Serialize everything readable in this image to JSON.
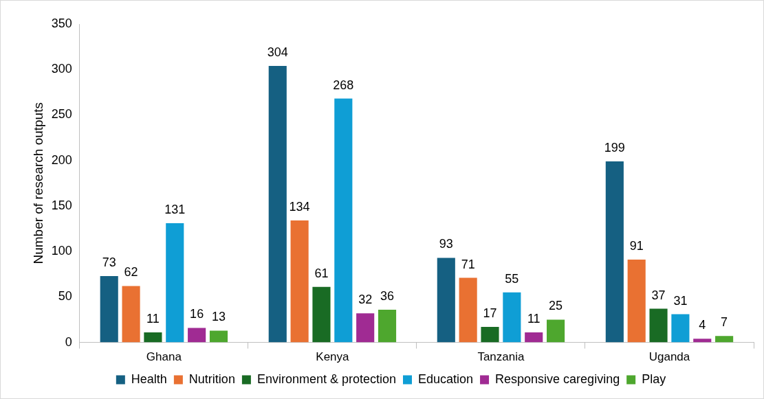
{
  "chart_data": {
    "type": "bar",
    "ylabel": "Number of research outputs",
    "categories": [
      "Ghana",
      "Kenya",
      "Tanzania",
      "Uganda"
    ],
    "series": [
      {
        "name": "Health",
        "color": "#156082",
        "values": [
          73,
          304,
          93,
          199
        ]
      },
      {
        "name": "Nutrition",
        "color": "#e97132",
        "values": [
          62,
          134,
          71,
          91
        ]
      },
      {
        "name": "Environment & protection",
        "color": "#196b24",
        "values": [
          11,
          61,
          17,
          37
        ]
      },
      {
        "name": "Education",
        "color": "#0f9ed5",
        "values": [
          131,
          268,
          55,
          31
        ]
      },
      {
        "name": "Responsive caregiving",
        "color": "#a02b93",
        "values": [
          16,
          32,
          11,
          4
        ]
      },
      {
        "name": "Play",
        "color": "#4ea72e",
        "values": [
          13,
          36,
          25,
          7
        ]
      }
    ],
    "ylim": [
      0,
      350
    ],
    "yticks": [
      0,
      50,
      100,
      150,
      200,
      250,
      300,
      350
    ],
    "data_labels": true,
    "legend": "bottom"
  }
}
